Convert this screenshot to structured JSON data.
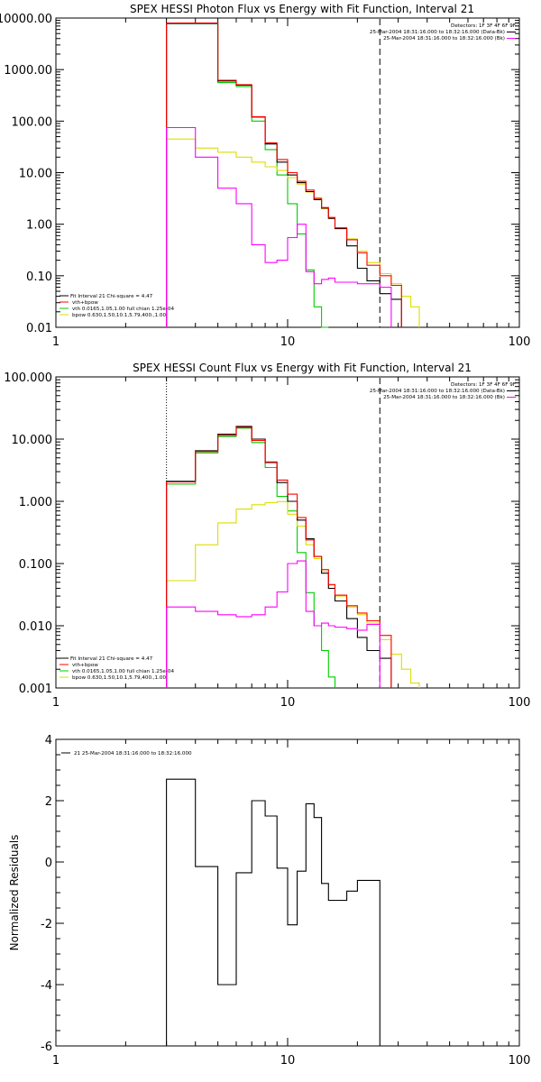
{
  "chart_data": [
    {
      "type": "line",
      "step": true,
      "title": "SPEX HESSI Photon Flux vs Energy with Fit Function, Interval 21",
      "xscale": "log",
      "yscale": "log",
      "xlim": [
        1,
        100
      ],
      "ylim": [
        0.01,
        10000
      ],
      "xticks": [
        "1",
        "10",
        "100"
      ],
      "yticks": [
        "10000.00",
        "1000.00",
        "100.00",
        "10.00",
        "1.00",
        "0.10",
        "0.01"
      ],
      "ytick_values": [
        10000,
        1000,
        100,
        10,
        1,
        0.1,
        0.01
      ],
      "vlines": [
        {
          "x": 3,
          "style": "dotted"
        },
        {
          "x": 25,
          "style": "dashed"
        }
      ],
      "legend_top": [
        "Detectors: 1F 3F 4F 6F 9F",
        "25-Mar-2004 18:31:16.000 to 18:32:16.000 (Data-Bk)",
        "25-Mar-2004 18:31:16.000 to 18:32:16.000 (Bk)"
      ],
      "legend_bottom": [
        "Fit Interval 21   Chi-square = 4.47",
        "vth+bpow",
        "vth 0.0165,1.05,1.00  full chian 1.25e-04",
        "bpow 0.630,1.50,10.1,5.79,400.,1.00"
      ],
      "colors": {
        "data": "#000000",
        "total": "#ff0000",
        "thermal": "#00cc00",
        "bpow": "#dddd00",
        "bk": "#ff00ff"
      },
      "edges": [
        3,
        4,
        5,
        6,
        7,
        8,
        9,
        10,
        11,
        12,
        13,
        14,
        15,
        16,
        18,
        20,
        22,
        25,
        28,
        31,
        34,
        37
      ],
      "series": [
        {
          "key": "thermal",
          "values": [
            7800,
            7800,
            560,
            470,
            100,
            28,
            9,
            2.5,
            0.65,
            0.13,
            0.025,
            0.006,
            null,
            null,
            null,
            null,
            null,
            null,
            null,
            null,
            null
          ]
        },
        {
          "key": "bpow",
          "values": [
            45,
            30,
            25,
            20,
            16,
            13,
            11,
            8,
            6,
            4.2,
            3.1,
            2,
            1.3,
            0.85,
            0.52,
            0.3,
            0.18,
            0.11,
            0.07,
            0.04,
            0.025
          ]
        },
        {
          "key": "data",
          "values": [
            7900,
            7900,
            600,
            500,
            120,
            36,
            16,
            9,
            6.4,
            4.3,
            3,
            2.05,
            1.3,
            0.82,
            0.38,
            0.14,
            0.08,
            0.045,
            0.035,
            null,
            null
          ]
        },
        {
          "key": "total",
          "values": [
            8000,
            8000,
            620,
            510,
            122,
            38,
            18,
            10,
            6.8,
            4.6,
            3.2,
            2.1,
            1.35,
            0.85,
            0.5,
            0.28,
            0.16,
            0.1,
            0.065,
            null,
            null
          ]
        },
        {
          "key": "bk",
          "values": [
            75,
            20,
            5,
            2.5,
            0.4,
            0.18,
            0.2,
            0.55,
            1,
            0.12,
            0.07,
            0.085,
            0.09,
            0.075,
            0.075,
            0.07,
            0.07,
            0.06,
            null,
            null,
            null
          ]
        }
      ]
    },
    {
      "type": "line",
      "step": true,
      "title": "SPEX HESSI Count Flux vs Energy with Fit Function, Interval 21",
      "xscale": "log",
      "yscale": "log",
      "xlim": [
        1,
        100
      ],
      "ylim": [
        0.001,
        100
      ],
      "xticks": [
        "1",
        "10",
        "100"
      ],
      "yticks": [
        "100.000",
        "10.000",
        "1.000",
        "0.100",
        "0.010",
        "0.001"
      ],
      "ytick_values": [
        100,
        10,
        1,
        0.1,
        0.01,
        0.001
      ],
      "vlines": [
        {
          "x": 3,
          "style": "dotted"
        },
        {
          "x": 25,
          "style": "dashed"
        }
      ],
      "legend_top": [
        "Detectors: 1F 3F 4F 6F 9F",
        "25-Mar-2004 18:31:16.000 to 18:32:16.000 (Data-Bk)",
        "25-Mar-2004 18:31:16.000 to 18:32:16.000 (Bk)"
      ],
      "legend_bottom": [
        "Fit Interval 21   Chi-square = 4.47",
        "vth+bpow",
        "vth 0.0165,1.05,1.00  full chian 1.25e-04",
        "bpow 0.630,1.50,10.1,5.79,400.,1.00"
      ],
      "colors": {
        "data": "#000000",
        "total": "#ff0000",
        "thermal": "#00cc00",
        "bpow": "#dddd00",
        "bk": "#ff00ff"
      },
      "edges": [
        3,
        4,
        5,
        6,
        7,
        8,
        9,
        10,
        11,
        12,
        13,
        14,
        15,
        16,
        18,
        20,
        22,
        25,
        28,
        31,
        34,
        37
      ],
      "series": [
        {
          "key": "thermal",
          "values": [
            1.9,
            6,
            11,
            15,
            8.8,
            3.5,
            1.2,
            0.7,
            0.15,
            0.034,
            0.01,
            0.004,
            0.0015,
            null,
            null,
            null,
            null,
            null,
            null,
            null,
            null
          ]
        },
        {
          "key": "bpow",
          "values": [
            0.053,
            0.2,
            0.45,
            0.75,
            0.88,
            0.95,
            0.99,
            0.62,
            0.4,
            0.2,
            0.12,
            0.075,
            0.045,
            0.03,
            0.02,
            0.015,
            0.011,
            0.006,
            0.0035,
            0.002,
            0.0012
          ]
        },
        {
          "key": "data",
          "values": [
            2.1,
            6.5,
            12,
            16,
            10,
            4.2,
            2,
            1,
            0.5,
            0.25,
            0.13,
            0.07,
            0.04,
            0.025,
            0.013,
            0.0065,
            0.004,
            0.003,
            null,
            null,
            null
          ]
        },
        {
          "key": "total",
          "values": [
            2.05,
            6.3,
            11.5,
            15.5,
            9.5,
            4.3,
            2.2,
            1.3,
            0.55,
            0.24,
            0.13,
            0.08,
            0.046,
            0.031,
            0.021,
            0.016,
            0.012,
            0.007,
            null,
            null,
            null
          ]
        },
        {
          "key": "bk",
          "values": [
            0.02,
            0.017,
            0.015,
            0.014,
            0.015,
            0.02,
            0.035,
            0.1,
            0.11,
            0.017,
            0.01,
            0.011,
            0.01,
            0.0095,
            0.009,
            0.0085,
            0.0105,
            null,
            null,
            null,
            null
          ]
        }
      ]
    },
    {
      "type": "line",
      "step": true,
      "xscale": "log",
      "xlim": [
        1,
        100
      ],
      "ylim": [
        -6,
        4
      ],
      "xticks": [
        "1",
        "10",
        "100"
      ],
      "yticks": [
        "4",
        "2",
        "0",
        "-2",
        "-4",
        "-6"
      ],
      "ytick_values": [
        4,
        2,
        0,
        -2,
        -4,
        -6
      ],
      "ylabel": "Normalized Residuals",
      "legend": [
        "21  25-Mar-2004 18:31:16.000 to 18:32:16.000"
      ],
      "edges": [
        3,
        4,
        5,
        6,
        7,
        8,
        9,
        10,
        11,
        12,
        13,
        14,
        15,
        16,
        18,
        20,
        22,
        25
      ],
      "values": [
        2.7,
        -0.15,
        -4.0,
        -0.35,
        2.0,
        1.5,
        -0.2,
        -2.05,
        -0.3,
        1.9,
        1.45,
        -0.7,
        -1.25,
        -1.25,
        -0.95,
        -0.6,
        -0.6
      ]
    }
  ]
}
